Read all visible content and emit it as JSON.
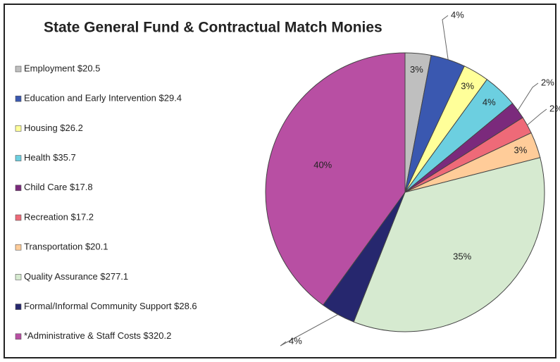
{
  "chart_data": {
    "type": "pie",
    "title": "State General Fund & Contractual Match Monies",
    "categories": [
      "Employment $20.5",
      "Education and Early Intervention $29.4",
      "Housing $26.2",
      "Health $35.7",
      "Child Care $17.8",
      "Recreation $17.2",
      "Transportation $20.1",
      "Quality Assurance $277.1",
      "Formal/Informal Community Support $28.6",
      "*Administrative & Staff Costs $320.2"
    ],
    "values": [
      3,
      4,
      3,
      4,
      2,
      2,
      3,
      35,
      4,
      40
    ],
    "value_labels": [
      "3%",
      "4%",
      "3%",
      "4%",
      "2%",
      "2%",
      "3%",
      "35%",
      "4%",
      "40%"
    ],
    "colors": [
      "#bfbfbf",
      "#3a58b0",
      "#ffff99",
      "#6ccfe0",
      "#7b2a7c",
      "#ee6a78",
      "#ffcc99",
      "#d6ead0",
      "#26276e",
      "#b84fa3"
    ],
    "legend": "left"
  }
}
